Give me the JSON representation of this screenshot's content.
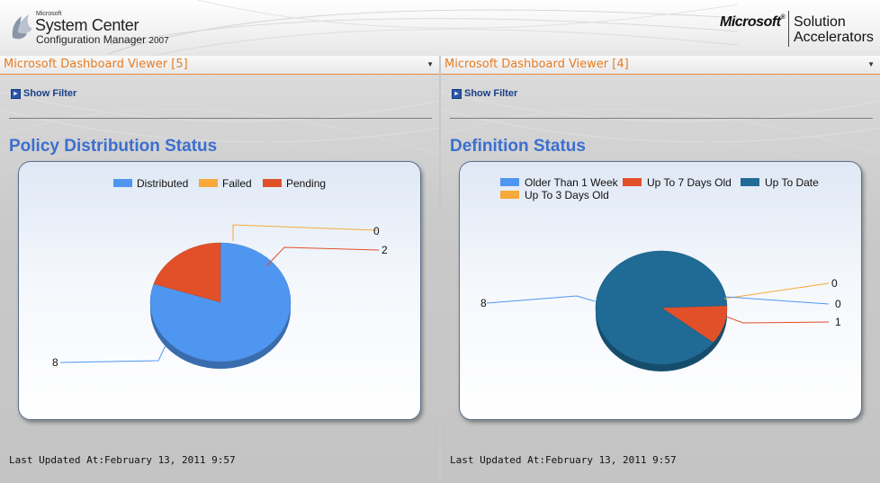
{
  "banner": {
    "ms_small": "Microsoft",
    "product_line": "System Center",
    "product_sub": "Configuration Manager",
    "product_year": "2007",
    "brand": "Microsoft",
    "brand_mark": "®",
    "solution_line1": "Solution",
    "solution_line2": "Accelerators"
  },
  "panels": [
    {
      "header": "Microsoft Dashboard Viewer [5]",
      "filter_label": "Show Filter",
      "title": "Policy Distribution Status",
      "updated": "Last Updated At:February 13, 2011 9:57"
    },
    {
      "header": "Microsoft Dashboard Viewer [4]",
      "filter_label": "Show Filter",
      "title": "Definition Status",
      "updated": "Last Updated At:February 13, 2011 9:57"
    }
  ],
  "chart_data": [
    {
      "type": "pie",
      "title": "Policy Distribution Status",
      "legend_position": "top",
      "slices": [
        {
          "name": "Distributed",
          "value": 8,
          "color": "#4f96f0"
        },
        {
          "name": "Failed",
          "value": 0,
          "color": "#f7a93a"
        },
        {
          "name": "Pending",
          "value": 2,
          "color": "#e2502a"
        }
      ]
    },
    {
      "type": "pie",
      "title": "Definition Status",
      "legend_position": "top",
      "slices": [
        {
          "name": "Older Than 1 Week",
          "value": 0,
          "color": "#4f96f0"
        },
        {
          "name": "Up To 7 Days Old",
          "value": 1,
          "color": "#e2502a"
        },
        {
          "name": "Up To Date",
          "value": 8,
          "color": "#1f6b96"
        },
        {
          "name": "Up To 3 Days Old",
          "value": 0,
          "color": "#f7a93a"
        }
      ]
    }
  ]
}
